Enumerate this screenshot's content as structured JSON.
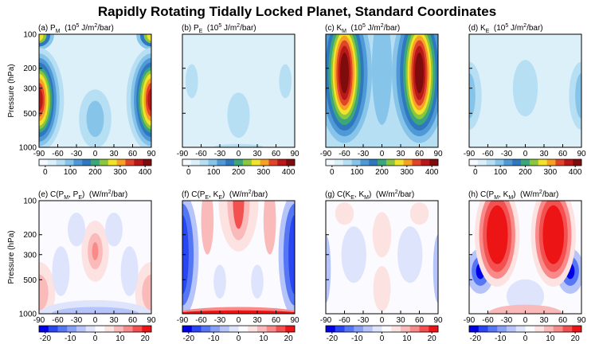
{
  "title": "Rapidly Rotating Tidally Locked Planet, Standard Coordinates",
  "chart_data": [
    {
      "type": "contour",
      "title": [
        {
          "text": "(a) P"
        },
        {
          "text": "M",
          "shift": "sub"
        },
        {
          "text": "  (10"
        },
        {
          "text": "5",
          "shift": "super"
        },
        {
          "text": " J/m"
        },
        {
          "text": "2",
          "shift": "super"
        },
        {
          "text": "/bar)"
        }
      ],
      "ylabel": "Pressure (hPa)",
      "xlim": [
        -90,
        90
      ],
      "xticks": [
        -90,
        -60,
        -30,
        0,
        30,
        60,
        90
      ],
      "ylim": [
        1000,
        100
      ],
      "yticks": [
        100,
        200,
        300,
        500,
        1000
      ],
      "ytick_labels": true,
      "log_y": true,
      "clim": [
        -25,
        425
      ],
      "cticks": [
        0,
        100,
        200,
        300,
        400
      ],
      "colormap": [
        "#f4faff",
        "#dcf0fa",
        "#b6dff4",
        "#86c4e9",
        "#4f9ad6",
        "#2f78c0",
        "#3aa67a",
        "#8cc63f",
        "#f1e22b",
        "#f6a025",
        "#e0452a",
        "#b81818",
        "#7e0c0c"
      ]
    },
    {
      "type": "contour",
      "title": [
        {
          "text": "(b) P"
        },
        {
          "text": "E",
          "shift": "sub"
        },
        {
          "text": "  (10"
        },
        {
          "text": "5",
          "shift": "super"
        },
        {
          "text": " J/m"
        },
        {
          "text": "2",
          "shift": "super"
        },
        {
          "text": "/bar)"
        }
      ],
      "xlim": [
        -90,
        90
      ],
      "xticks": [
        -90,
        -60,
        -30,
        0,
        30,
        60,
        90
      ],
      "ylim": [
        1000,
        100
      ],
      "yticks": [
        100,
        200,
        300,
        500,
        1000
      ],
      "ytick_labels": false,
      "log_y": true,
      "clim": [
        -25,
        425
      ],
      "cticks": [
        0,
        100,
        200,
        300,
        400
      ],
      "colormap": [
        "#f4faff",
        "#dcf0fa",
        "#b6dff4",
        "#86c4e9",
        "#4f9ad6",
        "#2f78c0",
        "#3aa67a",
        "#8cc63f",
        "#f1e22b",
        "#f6a025",
        "#e0452a",
        "#b81818",
        "#7e0c0c"
      ]
    },
    {
      "type": "contour",
      "title": [
        {
          "text": "(c) K"
        },
        {
          "text": "M",
          "shift": "sub"
        },
        {
          "text": "  (10"
        },
        {
          "text": "5",
          "shift": "super"
        },
        {
          "text": " J/m"
        },
        {
          "text": "2",
          "shift": "super"
        },
        {
          "text": "/bar)"
        }
      ],
      "xlim": [
        -90,
        90
      ],
      "xticks": [
        -90,
        -60,
        -30,
        0,
        30,
        60,
        90
      ],
      "ylim": [
        1000,
        100
      ],
      "yticks": [
        100,
        200,
        300,
        500,
        1000
      ],
      "ytick_labels": false,
      "log_y": true,
      "clim": [
        -25,
        425
      ],
      "cticks": [
        0,
        100,
        200,
        300,
        400
      ],
      "colormap": [
        "#f4faff",
        "#dcf0fa",
        "#b6dff4",
        "#86c4e9",
        "#4f9ad6",
        "#2f78c0",
        "#3aa67a",
        "#8cc63f",
        "#f1e22b",
        "#f6a025",
        "#e0452a",
        "#b81818",
        "#7e0c0c"
      ]
    },
    {
      "type": "contour",
      "title": [
        {
          "text": "(d) K"
        },
        {
          "text": "E",
          "shift": "sub"
        },
        {
          "text": "  (10"
        },
        {
          "text": "5",
          "shift": "super"
        },
        {
          "text": " J/m"
        },
        {
          "text": "2",
          "shift": "super"
        },
        {
          "text": "/bar)"
        }
      ],
      "xlim": [
        -90,
        90
      ],
      "xticks": [
        -90,
        -60,
        -30,
        0,
        30,
        60,
        90
      ],
      "ylim": [
        1000,
        100
      ],
      "yticks": [
        100,
        200,
        300,
        500,
        1000
      ],
      "ytick_labels": false,
      "log_y": true,
      "clim": [
        -25,
        425
      ],
      "cticks": [
        0,
        100,
        200,
        300,
        400
      ],
      "colormap": [
        "#f4faff",
        "#dcf0fa",
        "#b6dff4",
        "#86c4e9",
        "#4f9ad6",
        "#2f78c0",
        "#3aa67a",
        "#8cc63f",
        "#f1e22b",
        "#f6a025",
        "#e0452a",
        "#b81818",
        "#7e0c0c"
      ]
    },
    {
      "type": "contour",
      "title": [
        {
          "text": "(e) C(P"
        },
        {
          "text": "M",
          "shift": "sub"
        },
        {
          "text": ", P"
        },
        {
          "text": "E",
          "shift": "sub"
        },
        {
          "text": ")  (W/m"
        },
        {
          "text": "2",
          "shift": "super"
        },
        {
          "text": "/bar)"
        }
      ],
      "ylabel": "Pressure (hPa)",
      "xlim": [
        -90,
        90
      ],
      "xticks": [
        -90,
        -60,
        -30,
        0,
        30,
        60,
        90
      ],
      "ylim": [
        1000,
        100
      ],
      "yticks": [
        100,
        200,
        300,
        500,
        1000
      ],
      "ytick_labels": true,
      "log_y": true,
      "clim": [
        -22.5,
        22.5
      ],
      "cticks": [
        -20,
        -10,
        0,
        10,
        20
      ],
      "colormap": [
        "#0000e8",
        "#2846f2",
        "#5577f4",
        "#88a0f6",
        "#b6c4f9",
        "#dde4fc",
        "#fbfbff",
        "#fde2e2",
        "#fbbaba",
        "#f88a8a",
        "#f35050",
        "#ec1414"
      ]
    },
    {
      "type": "contour",
      "title": [
        {
          "text": "(f) C(P"
        },
        {
          "text": "E",
          "shift": "sub"
        },
        {
          "text": ", K"
        },
        {
          "text": "E",
          "shift": "sub"
        },
        {
          "text": ")  (W/m"
        },
        {
          "text": "2",
          "shift": "super"
        },
        {
          "text": "/bar)"
        }
      ],
      "xlim": [
        -90,
        90
      ],
      "xticks": [
        -90,
        -60,
        -30,
        0,
        30,
        60,
        90
      ],
      "ylim": [
        1000,
        100
      ],
      "yticks": [
        100,
        200,
        300,
        500,
        1000
      ],
      "ytick_labels": false,
      "log_y": true,
      "clim": [
        -22.5,
        22.5
      ],
      "cticks": [
        -20,
        -10,
        0,
        10,
        20
      ],
      "colormap": [
        "#0000e8",
        "#2846f2",
        "#5577f4",
        "#88a0f6",
        "#b6c4f9",
        "#dde4fc",
        "#fbfbff",
        "#fde2e2",
        "#fbbaba",
        "#f88a8a",
        "#f35050",
        "#ec1414"
      ]
    },
    {
      "type": "contour",
      "title": [
        {
          "text": "(g) C(K"
        },
        {
          "text": "E",
          "shift": "sub"
        },
        {
          "text": ", K"
        },
        {
          "text": "M",
          "shift": "sub"
        },
        {
          "text": ")  (W/m"
        },
        {
          "text": "2",
          "shift": "super"
        },
        {
          "text": "/bar)"
        }
      ],
      "xlim": [
        -90,
        90
      ],
      "xticks": [
        -90,
        -60,
        -30,
        0,
        30,
        60,
        90
      ],
      "ylim": [
        1000,
        100
      ],
      "yticks": [
        100,
        200,
        300,
        500,
        1000
      ],
      "ytick_labels": false,
      "log_y": true,
      "clim": [
        -22.5,
        22.5
      ],
      "cticks": [
        -20,
        -10,
        0,
        10,
        20
      ],
      "colormap": [
        "#0000e8",
        "#2846f2",
        "#5577f4",
        "#88a0f6",
        "#b6c4f9",
        "#dde4fc",
        "#fbfbff",
        "#fde2e2",
        "#fbbaba",
        "#f88a8a",
        "#f35050",
        "#ec1414"
      ]
    },
    {
      "type": "contour",
      "title": [
        {
          "text": "(h) C(P"
        },
        {
          "text": "M",
          "shift": "sub"
        },
        {
          "text": ", K"
        },
        {
          "text": "M",
          "shift": "sub"
        },
        {
          "text": ")  (W/m"
        },
        {
          "text": "2",
          "shift": "super"
        },
        {
          "text": "/bar)"
        }
      ],
      "xlim": [
        -90,
        90
      ],
      "xticks": [
        -90,
        -60,
        -30,
        0,
        30,
        60,
        90
      ],
      "ylim": [
        1000,
        100
      ],
      "yticks": [
        100,
        200,
        300,
        500,
        1000
      ],
      "ytick_labels": false,
      "log_y": true,
      "clim": [
        -22.5,
        22.5
      ],
      "cticks": [
        -20,
        -10,
        0,
        10,
        20
      ],
      "colormap": [
        "#0000e8",
        "#2846f2",
        "#5577f4",
        "#88a0f6",
        "#b6c4f9",
        "#dde4fc",
        "#fbfbff",
        "#fde2e2",
        "#fbbaba",
        "#f88a8a",
        "#f35050",
        "#ec1414"
      ]
    }
  ]
}
